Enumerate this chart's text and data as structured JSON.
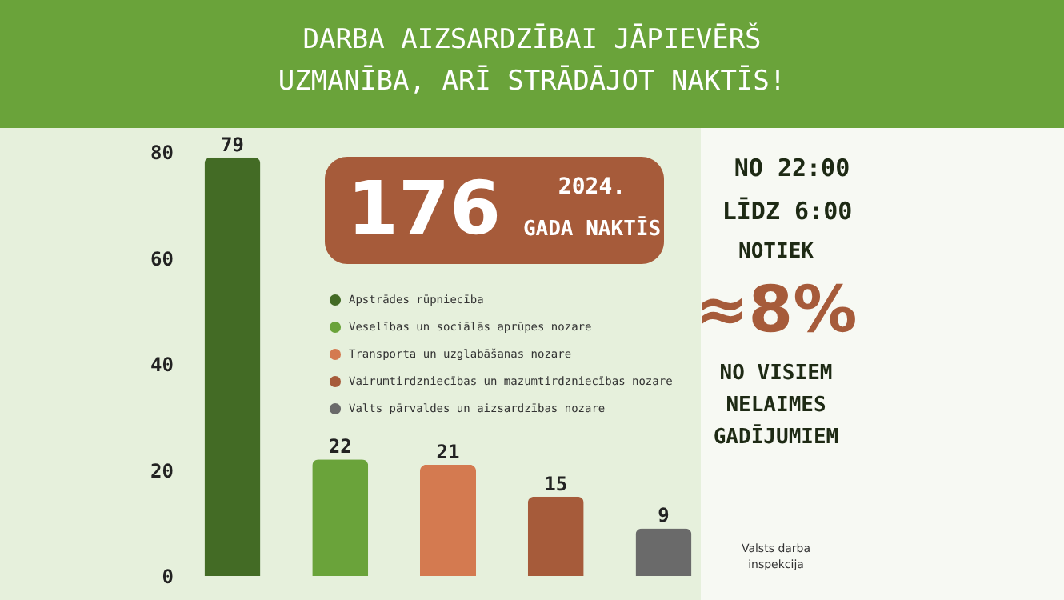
{
  "chart_data": {
    "type": "bar",
    "title": "DARBA AIZSARDZĪBAI JĀPIEVĒRŠ UZMANĪBA, ARĪ STRĀDĀJOT NAKTĪS!",
    "categories": [
      null,
      null,
      null,
      null,
      null
    ],
    "series": [
      {
        "name": "Apstrādes rūpniecība",
        "color": "#436b25",
        "values": [
          79,
          null,
          null,
          null,
          null
        ]
      },
      {
        "name": "Veselības un sociālās aprūpes nozare",
        "color": "#6aa33a",
        "values": [
          null,
          22,
          null,
          null,
          null
        ]
      },
      {
        "name": "Transporta un uzglabāšanas nozare",
        "color": "#d47a50",
        "values": [
          null,
          null,
          21,
          null,
          null
        ]
      },
      {
        "name": "Vairumtirdzniecības un mazumtirdzniecības nozare",
        "color": "#a65b3a",
        "values": [
          null,
          null,
          null,
          15,
          null
        ]
      },
      {
        "name": "Valts pārvaldes un aizsardzības nozare",
        "color": "#6a6a6a",
        "values": [
          null,
          null,
          null,
          null,
          9
        ]
      }
    ],
    "ylim": [
      0,
      80
    ],
    "yticks": [
      0,
      20,
      40,
      60,
      80
    ],
    "stacked": true,
    "data_labels": true,
    "grid": false,
    "legend": "top right",
    "tick_labels": "y",
    "annotations": [
      "176",
      "2024.",
      "GADA NAKTĪS",
      "NO 22:00",
      "LĪDZ 6:00",
      "NOTIEK",
      "≈8%",
      "NO VISIEM",
      "NELAIMES",
      "GADĪJUMIEM",
      "Valsts darba",
      "inspekcija"
    ]
  }
}
